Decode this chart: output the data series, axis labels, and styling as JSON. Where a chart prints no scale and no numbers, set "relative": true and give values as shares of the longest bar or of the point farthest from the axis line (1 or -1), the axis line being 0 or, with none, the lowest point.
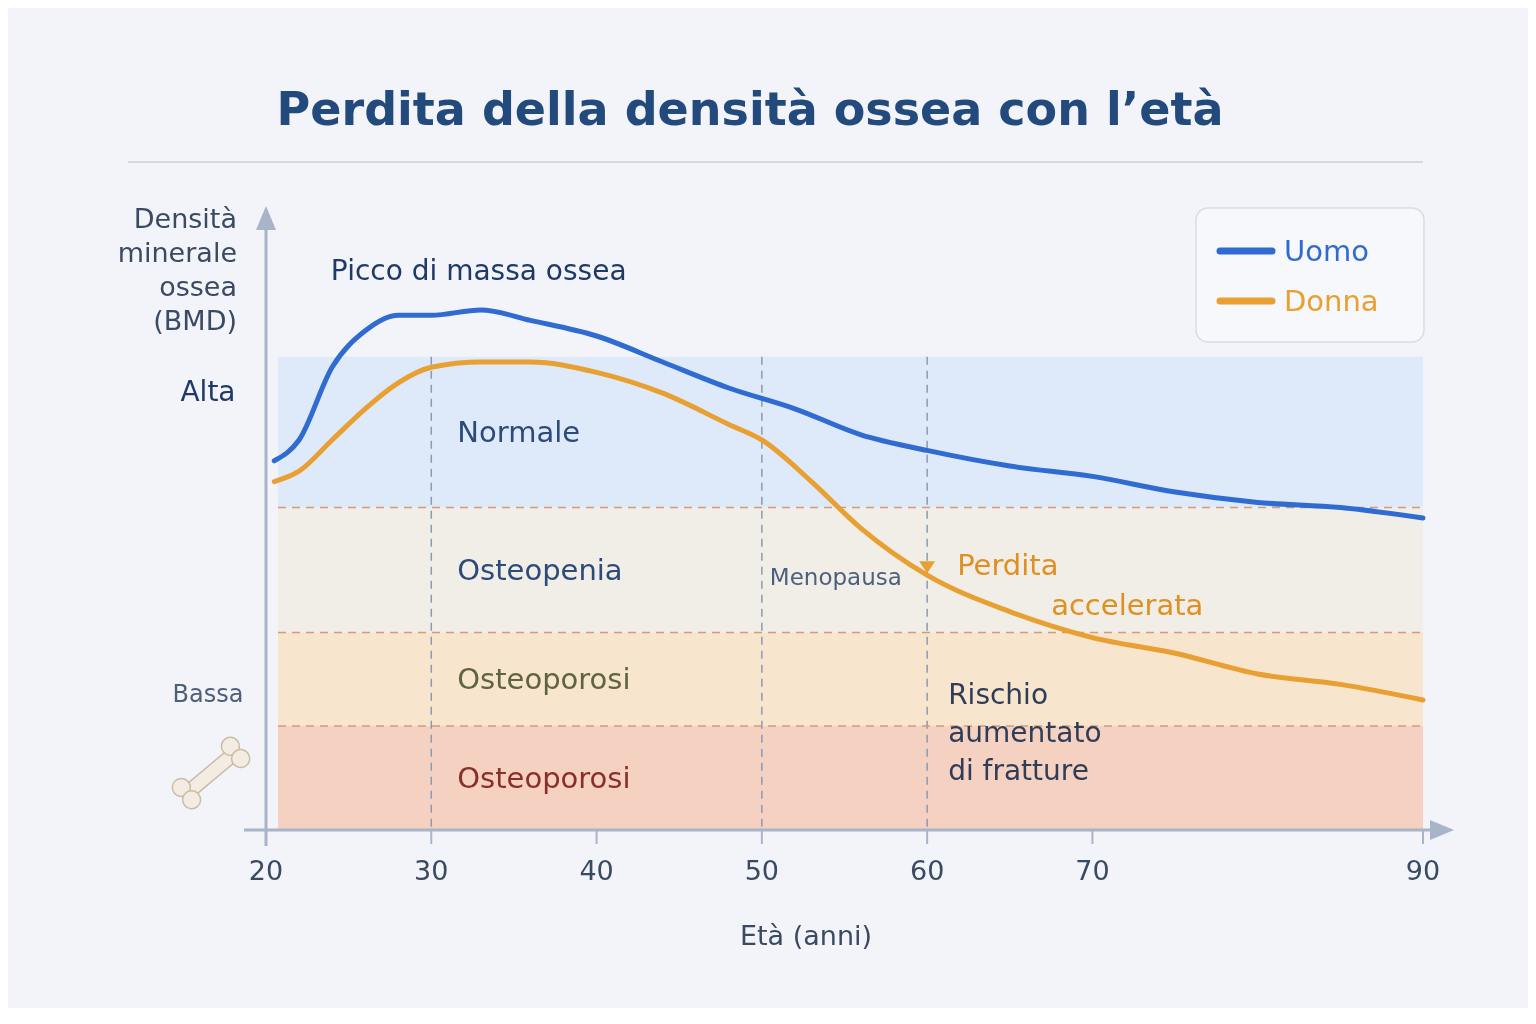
{
  "chart_data": {
    "type": "line",
    "title": "Perdita della densità ossea con l’età",
    "xlabel": "Età (anni)",
    "ylabel": "Densità minerale ossea (BMD)",
    "relative": true,
    "xlim": [
      20,
      90
    ],
    "xticks": [
      20,
      30,
      40,
      50,
      60,
      70,
      90
    ],
    "series": [
      {
        "name": "Uomo",
        "color": "#2f6bd0",
        "x": [
          20.5,
          22,
          24,
          26,
          28,
          30,
          33,
          36,
          40,
          44,
          48,
          52,
          56,
          60,
          65,
          70,
          75,
          80,
          85,
          90
        ],
        "values": [
          0.71,
          0.75,
          0.89,
          0.96,
          0.99,
          0.99,
          1,
          0.98,
          0.95,
          0.9,
          0.85,
          0.81,
          0.76,
          0.73,
          0.7,
          0.68,
          0.65,
          0.63,
          0.62,
          0.6
        ]
      },
      {
        "name": "Donna",
        "color": "#e8a032",
        "x": [
          20.5,
          22,
          24,
          26,
          28,
          30,
          33,
          36,
          40,
          44,
          48,
          50,
          53,
          56,
          60,
          65,
          70,
          75,
          80,
          85,
          90
        ],
        "values": [
          0.67,
          0.69,
          0.75,
          0.81,
          0.86,
          0.89,
          0.9,
          0.9,
          0.88,
          0.84,
          0.78,
          0.75,
          0.67,
          0.58,
          0.49,
          0.42,
          0.37,
          0.34,
          0.3,
          0.28,
          0.25
        ]
      }
    ],
    "bands": [
      {
        "axis": "y",
        "from": 0.62,
        "to": 0.91,
        "label": "Normale",
        "color": "#dce9f8"
      },
      {
        "axis": "y",
        "from": 0.38,
        "to": 0.62,
        "label": "Osteopenia",
        "color": "#f1ede6"
      },
      {
        "axis": "y",
        "from": 0.2,
        "to": 0.38,
        "label": "Osteoporosi",
        "color": "#f7e3c9"
      },
      {
        "axis": "y",
        "from": 0,
        "to": 0.2,
        "label": "Osteoporosi",
        "color": "#f5cdbb"
      }
    ],
    "ref_lines": [
      {
        "axis": "x",
        "value": 30,
        "label": null,
        "line_style": "dashed",
        "color": "#8c9ab0"
      },
      {
        "axis": "x",
        "value": 50,
        "label": "Menopausa",
        "line_style": "dashed",
        "color": "#8c9ab0"
      },
      {
        "axis": "x",
        "value": 60,
        "label": null,
        "line_style": "dashed",
        "color": "#8c9ab0"
      },
      {
        "axis": "y",
        "value": 0.62,
        "label": null,
        "line_style": "dashed",
        "color": "#d49a7a"
      },
      {
        "axis": "y",
        "value": 0.38,
        "label": null,
        "line_style": "dashed",
        "color": "#d49a7a"
      },
      {
        "axis": "y",
        "value": 0.2,
        "label": null,
        "line_style": "dashed",
        "color": "#d49a7a"
      }
    ],
    "annotations": [
      {
        "text": "Picco di massa ossea",
        "x": 33,
        "y": 1
      },
      {
        "text": "Perdita accelerata",
        "x": 60,
        "y": 0.49
      },
      "Rischio aumentato di fratture",
      "Alta",
      "Bassa"
    ],
    "legend": "top right",
    "marker": "none",
    "line_style": "solid"
  }
}
